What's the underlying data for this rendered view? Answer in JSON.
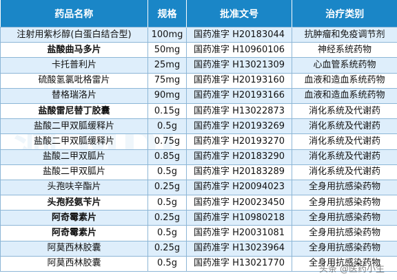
{
  "headers": [
    "药品名称",
    "规格",
    "批准文号",
    "治疗类别"
  ],
  "rows": [
    {
      "name": "注射用紫杉醇(白蛋白结合型)",
      "spec": "100mg",
      "approval": "国药准字 H20183044",
      "category": "抗肿瘤和免疫调节剂",
      "bold": false
    },
    {
      "name": "盐酸曲马多片",
      "spec": "50mg",
      "approval": "国药准字 H10960106",
      "category": "神经系统药物",
      "bold": true
    },
    {
      "name": "卡托普利片",
      "spec": "25mg",
      "approval": "国药准字 H13021309",
      "category": "心血管系统药物",
      "bold": false
    },
    {
      "name": "硫酸氢氯吡格雷片",
      "spec": "75mg",
      "approval": "国药准字 H20193160",
      "category": "血液和造血系统药物",
      "bold": false
    },
    {
      "name": "替格瑞洛片",
      "spec": "90mg",
      "approval": "国药准字 H20193166",
      "category": "血液和造血系统药物",
      "bold": false
    },
    {
      "name": "盐酸雷尼替丁胶囊",
      "spec": "0.15g",
      "approval": "国药准字 H13022873",
      "category": "消化系统及代谢药",
      "bold": true
    },
    {
      "name": "盐酸二甲双胍缓释片",
      "spec": "0.5g",
      "approval": "国药准字 H20193269",
      "category": "消化系统及代谢药",
      "bold": false
    },
    {
      "name": "盐酸二甲双胍缓释片",
      "spec": "0.75g",
      "approval": "国药准字 H20193270",
      "category": "消化系统及代谢药",
      "bold": false
    },
    {
      "name": "盐酸二甲双胍片",
      "spec": "0.85g",
      "approval": "国药准字 H20183290",
      "category": "消化系统及代谢药",
      "bold": false
    },
    {
      "name": "盐酸二甲双胍片",
      "spec": "0.5g",
      "approval": "国药准字 H20183289",
      "category": "消化系统及代谢药",
      "bold": false
    },
    {
      "name": "头孢呋辛酯片",
      "spec": "0.25g",
      "approval": "国药准字 H20094023",
      "category": "全身用抗感染药物",
      "bold": false
    },
    {
      "name": "头孢羟氨苄片",
      "spec": "0.5g",
      "approval": "国药准字 H20023450",
      "category": "全身用抗感染药物",
      "bold": true
    },
    {
      "name": "阿奇霉素片",
      "spec": "0.25g",
      "approval": "国药准字 H10980218",
      "category": "全身用抗感染药物",
      "bold": true
    },
    {
      "name": "阿奇霉素片",
      "spec": "0.5g",
      "approval": "国药准字 H20031081",
      "category": "全身用抗感染药物",
      "bold": true
    },
    {
      "name": "阿莫西林胶囊",
      "spec": "0.25g",
      "approval": "国药准字 H13023964",
      "category": "全身用抗感染药物",
      "bold": false
    },
    {
      "name": "阿莫西林胶囊",
      "spec": "0.5g",
      "approval": "国药准字 H13021770",
      "category": "全身用抗感染药物",
      "bold": false
    }
  ],
  "watermark": "头条 @医药小生",
  "colors": {
    "header_bg": "#1a86c7",
    "alt_row": "#deeefb",
    "border": "#8cb6d6"
  }
}
